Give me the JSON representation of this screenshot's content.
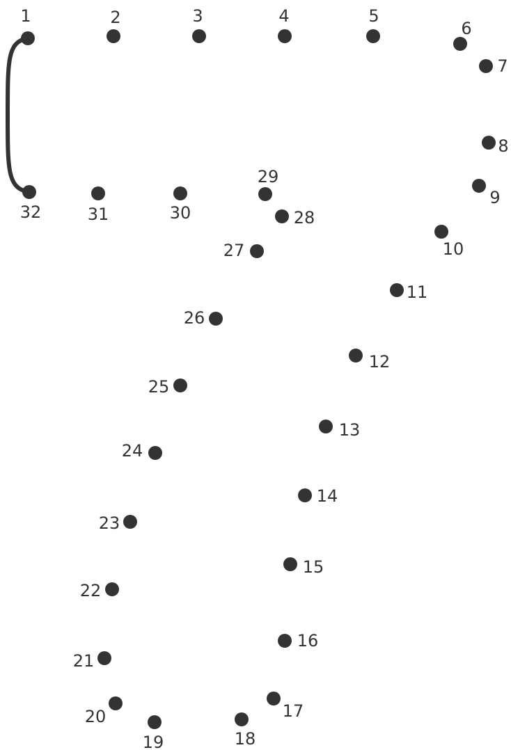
{
  "puzzle": {
    "ink_color": "#333333",
    "background_color": "#ffffff",
    "dots": [
      {
        "label": "1"
      },
      {
        "label": "2"
      },
      {
        "label": "3"
      },
      {
        "label": "4"
      },
      {
        "label": "5"
      },
      {
        "label": "6"
      },
      {
        "label": "7"
      },
      {
        "label": "8"
      },
      {
        "label": "9"
      },
      {
        "label": "10"
      },
      {
        "label": "11"
      },
      {
        "label": "12"
      },
      {
        "label": "13"
      },
      {
        "label": "14"
      },
      {
        "label": "15"
      },
      {
        "label": "16"
      },
      {
        "label": "17"
      },
      {
        "label": "18"
      },
      {
        "label": "19"
      },
      {
        "label": "20"
      },
      {
        "label": "21"
      },
      {
        "label": "22"
      },
      {
        "label": "23"
      },
      {
        "label": "24"
      },
      {
        "label": "25"
      },
      {
        "label": "26"
      },
      {
        "label": "27"
      },
      {
        "label": "28"
      },
      {
        "label": "29"
      },
      {
        "label": "30"
      },
      {
        "label": "31"
      },
      {
        "label": "32"
      }
    ],
    "connected_lines": [
      {
        "from": "1",
        "to": "32"
      }
    ]
  }
}
